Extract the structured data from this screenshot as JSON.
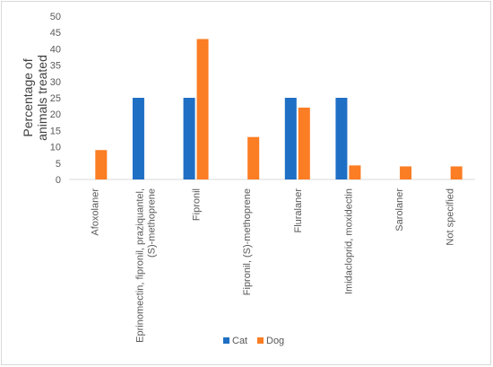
{
  "chart_data": {
    "type": "bar",
    "title": "",
    "ylabel_lines": [
      "Percentage of",
      "animals treated"
    ],
    "xlabel": "",
    "ylim": [
      0,
      50
    ],
    "yticks": [
      0,
      5,
      10,
      15,
      20,
      25,
      30,
      35,
      40,
      45,
      50
    ],
    "grid": false,
    "legend": "bottom",
    "categories": [
      {
        "lines": [
          "Afoxolaner"
        ]
      },
      {
        "lines": [
          "Eprinomectin, fipronil, praziquantel,",
          "(S)-methoprene"
        ]
      },
      {
        "lines": [
          "Fipronil"
        ]
      },
      {
        "lines": [
          "Fipronil, (S)-methoprene"
        ]
      },
      {
        "lines": [
          "Fluralaner"
        ]
      },
      {
        "lines": [
          "Imidacloprid, moxidectin"
        ]
      },
      {
        "lines": [
          "Sarolaner"
        ]
      },
      {
        "lines": [
          "Not specified"
        ]
      }
    ],
    "series": [
      {
        "name": "Cat",
        "color": "#1f6fc5",
        "values": [
          0,
          25,
          25,
          0,
          25,
          25,
          0,
          0
        ]
      },
      {
        "name": "Dog",
        "color": "#fb7d24",
        "values": [
          9,
          0,
          43,
          13,
          22,
          4.3,
          4,
          4
        ]
      }
    ]
  }
}
